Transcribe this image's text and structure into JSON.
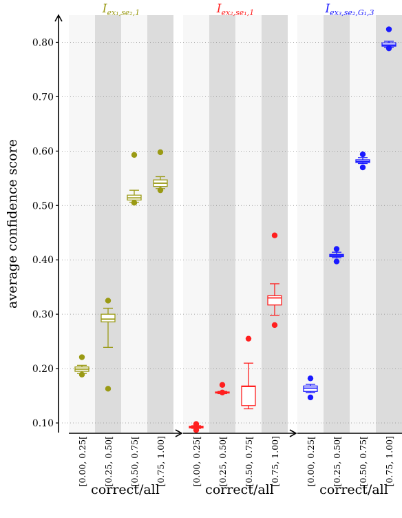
{
  "chart_data": {
    "type": "box",
    "ylabel": "average confidence score",
    "ylim": [
      0.05,
      0.85
    ],
    "yticks": [
      0.1,
      0.2,
      0.3,
      0.4,
      0.5,
      0.6,
      0.7,
      0.8
    ],
    "ytick_labels": [
      "0.10",
      "0.20",
      "0.30",
      "0.40",
      "0.50",
      "0.60",
      "0.70",
      "0.80"
    ],
    "grid": "horizontal-dotted",
    "categories": [
      "[0.00, 0.25[",
      "[0.25, 0.50[",
      "[0.50, 0.75[",
      "[0.75, 1.00]"
    ],
    "panels": [
      {
        "title_base": "I",
        "title_sub": "ex₁,se₂,1",
        "xlabel": "correct/all",
        "color": "#9a9a14",
        "boxes": [
          {
            "whisker_low": 0.191,
            "q1": 0.195,
            "median": 0.199,
            "q3": 0.203,
            "whisker_high": 0.206,
            "outliers": [
              0.221,
              0.189
            ]
          },
          {
            "whisker_low": 0.239,
            "q1": 0.286,
            "median": 0.291,
            "q3": 0.3,
            "whisker_high": 0.311,
            "outliers": [
              0.325,
              0.163
            ]
          },
          {
            "whisker_low": 0.506,
            "q1": 0.51,
            "median": 0.514,
            "q3": 0.519,
            "whisker_high": 0.528,
            "outliers": [
              0.593,
              0.505
            ]
          },
          {
            "whisker_low": 0.531,
            "q1": 0.535,
            "median": 0.541,
            "q3": 0.547,
            "whisker_high": 0.553,
            "outliers": [
              0.598,
              0.528
            ]
          }
        ]
      },
      {
        "title_base": "I",
        "title_sub": "ex₂,se₁,1",
        "xlabel": "correct/all",
        "color": "#ff1f1f",
        "boxes": [
          {
            "whisker_low": 0.09,
            "q1": 0.091,
            "median": 0.093,
            "q3": 0.094,
            "whisker_high": 0.095,
            "outliers": [
              0.098,
              0.087
            ]
          },
          {
            "whisker_low": 0.154,
            "q1": 0.155,
            "median": 0.156,
            "q3": 0.157,
            "whisker_high": 0.158,
            "outliers": [
              0.17,
              0.156
            ]
          },
          {
            "whisker_low": 0.126,
            "q1": 0.132,
            "median": 0.167,
            "q3": 0.168,
            "whisker_high": 0.21,
            "outliers": [
              0.255
            ]
          },
          {
            "whisker_low": 0.298,
            "q1": 0.317,
            "median": 0.33,
            "q3": 0.334,
            "whisker_high": 0.356,
            "outliers": [
              0.445,
              0.28
            ]
          }
        ]
      },
      {
        "title_base": "I",
        "title_sub": "ex₃,se₂,G₁,3",
        "xlabel": "correct/all",
        "color": "#1a1aff",
        "boxes": [
          {
            "whisker_low": 0.156,
            "q1": 0.158,
            "median": 0.164,
            "q3": 0.168,
            "whisker_high": 0.171,
            "outliers": [
              0.182,
              0.147
            ]
          },
          {
            "whisker_low": 0.404,
            "q1": 0.406,
            "median": 0.408,
            "q3": 0.41,
            "whisker_high": 0.414,
            "outliers": [
              0.42,
              0.397
            ]
          },
          {
            "whisker_low": 0.577,
            "q1": 0.579,
            "median": 0.581,
            "q3": 0.584,
            "whisker_high": 0.588,
            "outliers": [
              0.594,
              0.57
            ]
          },
          {
            "whisker_low": 0.791,
            "q1": 0.793,
            "median": 0.795,
            "q3": 0.799,
            "whisker_high": 0.802,
            "outliers": [
              0.824,
              0.789
            ]
          }
        ]
      }
    ]
  }
}
